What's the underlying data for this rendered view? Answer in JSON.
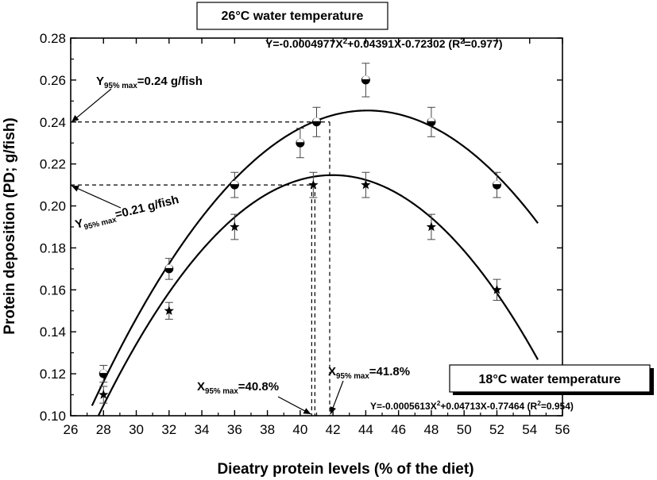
{
  "chart_data": {
    "type": "scatter",
    "xlabel": "Dieatry protein levels (% of the diet)",
    "ylabel": "Protein deposition (PD; g/fish)",
    "xlim": [
      26,
      56
    ],
    "ylim": [
      0.1,
      0.28
    ],
    "xticks": [
      "26",
      "28",
      "30",
      "32",
      "34",
      "36",
      "38",
      "40",
      "42",
      "44",
      "46",
      "48",
      "50",
      "52",
      "54",
      "56"
    ],
    "yticks": [
      "0.10",
      "0.12",
      "0.14",
      "0.16",
      "0.18",
      "0.20",
      "0.22",
      "0.24",
      "0.26",
      "0.28"
    ],
    "grid": false,
    "series": [
      {
        "name": "26°C water temperature",
        "marker": "circle",
        "x": [
          28,
          32,
          36,
          40,
          41,
          44,
          48,
          52
        ],
        "y": [
          0.12,
          0.17,
          0.21,
          0.23,
          0.24,
          0.26,
          0.24,
          0.21
        ],
        "error": [
          0.004,
          0.005,
          0.006,
          0.007,
          0.007,
          0.008,
          0.007,
          0.006
        ],
        "fit": {
          "a": -0.0004977,
          "b": 0.04391,
          "c": -0.72302,
          "x_range": [
            27.3,
            54.5
          ]
        },
        "equation_prefix": "Y=-0.0004977X",
        "equation_mid": "+0.04391X-0.72302 (R",
        "equation_suffix": "=0.977)",
        "box_label": "26°C water temperature"
      },
      {
        "name": "18°C water temperature",
        "marker": "star",
        "x": [
          28,
          32,
          36,
          40.8,
          44,
          48,
          52
        ],
        "y": [
          0.11,
          0.15,
          0.19,
          0.21,
          0.21,
          0.19,
          0.16
        ],
        "error": [
          0.004,
          0.004,
          0.006,
          0.006,
          0.006,
          0.006,
          0.005
        ],
        "fit": {
          "a": -0.0005613,
          "b": 0.04713,
          "c": -0.77464,
          "x_range": [
            27.5,
            54.5
          ]
        },
        "equation_prefix": "Y=-0.0005613X",
        "equation_mid": "+0.04713X-0.77464 (R",
        "equation_suffix": "=0.954)",
        "box_label": "18°C water temperature"
      }
    ],
    "annotations": {
      "y95_26": {
        "value": 0.24,
        "sub": "95% max",
        "text": "=0.24 g/fish"
      },
      "y95_18": {
        "value": 0.21,
        "sub": "95% max",
        "text": "=0.21 g/fish"
      },
      "x95_18": {
        "value": 40.8,
        "sub": "95% max",
        "text": "=40.8%"
      },
      "x95_26": {
        "value": 41.8,
        "sub": "95% max",
        "text": "=41.8%"
      }
    }
  }
}
